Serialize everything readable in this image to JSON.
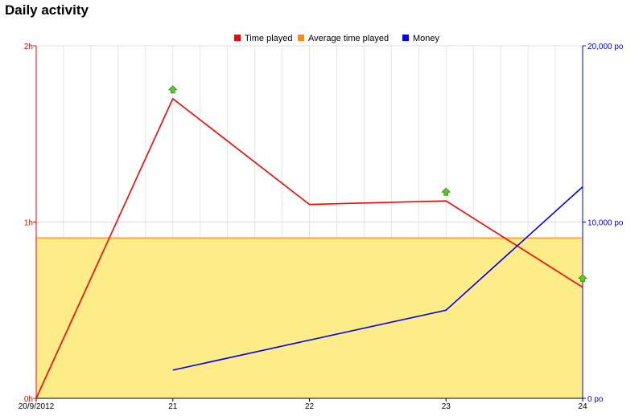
{
  "page": {
    "title": "Daily activity"
  },
  "chart_data": {
    "type": "line",
    "title": "Daily activity",
    "x": [
      "20/9/2012",
      "21",
      "22",
      "23",
      "24"
    ],
    "x_tick_labels": [
      "20/9/2012",
      "21",
      "22",
      "23",
      "24"
    ],
    "x_range": [
      0,
      4
    ],
    "y_left": {
      "ylim": [
        0,
        2
      ],
      "tick_values": [
        0,
        1,
        2
      ],
      "tick_labels": [
        "0h",
        "1h",
        "2h"
      ],
      "unit": "h",
      "color": "#ff0000"
    },
    "y_right": {
      "ylim": [
        0,
        20000
      ],
      "tick_values": [
        0,
        10000,
        20000
      ],
      "tick_labels": [
        "0 po",
        "10,000 po",
        "20,000 po"
      ],
      "unit": "po",
      "color": "#0000ff"
    },
    "grid": true,
    "legend_position": "top-center",
    "series": [
      {
        "name": "Time played",
        "type": "line",
        "axis": "left",
        "color": "#ff0000",
        "x": [
          0,
          1,
          2,
          3,
          4
        ],
        "values": [
          0,
          1.7,
          1.1,
          1.12,
          0.63
        ]
      },
      {
        "name": "Average time played",
        "type": "area",
        "axis": "left",
        "color": "#ff8c1a",
        "fill": "#fdec88",
        "x": [
          0,
          4
        ],
        "values": [
          0.91,
          0.91
        ]
      },
      {
        "name": "Money",
        "type": "line",
        "axis": "right",
        "color": "#0000ff",
        "x": [
          1,
          3,
          4
        ],
        "values": [
          1600,
          5000,
          12000
        ]
      }
    ],
    "markers": [
      {
        "name": "level-up",
        "x": 1,
        "value": 1.75,
        "axis": "left"
      },
      {
        "name": "level-up",
        "x": 3,
        "value": 1.17,
        "axis": "left"
      },
      {
        "name": "level-up",
        "x": 4,
        "value": 0.68,
        "axis": "left"
      }
    ]
  }
}
